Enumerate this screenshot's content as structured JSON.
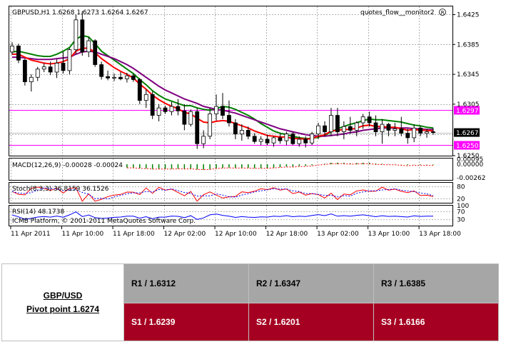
{
  "chart_data": {
    "type": "candlestick",
    "title": "GBPUSD,H1  1.6268 1.6273 1.6264 1.6267",
    "indicator_label": "quotes_flow__monitor2",
    "footer": "ICMB Platform, © 2001-2011 MetaQuotes Software Corp.",
    "y_ticks": [
      "1.6425",
      "1.6385",
      "1.6345",
      "1.6305",
      "1.6250"
    ],
    "ylim": [
      1.6236,
      1.6436
    ],
    "x_ticks": [
      "11 Apr 2011",
      "11 Apr 10:00",
      "11 Apr 18:00",
      "12 Apr 02:00",
      "12 Apr 10:00",
      "12 Apr 18:00",
      "13 Apr 02:00",
      "13 Apr 10:00",
      "13 Apr 18:00"
    ],
    "current_price": "1.6267",
    "level_lines": [
      {
        "value": 1.6297,
        "label": "1.6297",
        "color": "#ff00ff"
      },
      {
        "value": 1.625,
        "label": "1.6250",
        "color": "#ff00ff"
      }
    ],
    "candles": [
      [
        1.6375,
        1.6388,
        1.6371,
        1.6383
      ],
      [
        1.6383,
        1.6386,
        1.636,
        1.6364
      ],
      [
        1.6364,
        1.6366,
        1.633,
        1.6335
      ],
      [
        1.6335,
        1.6345,
        1.6322,
        1.6341
      ],
      [
        1.6341,
        1.6355,
        1.6336,
        1.6352
      ],
      [
        1.6352,
        1.636,
        1.6348,
        1.6355
      ],
      [
        1.6355,
        1.6362,
        1.6344,
        1.6348
      ],
      [
        1.6348,
        1.6365,
        1.634,
        1.636
      ],
      [
        1.636,
        1.6375,
        1.6346,
        1.635
      ],
      [
        1.635,
        1.638,
        1.6345,
        1.6378
      ],
      [
        1.6378,
        1.6425,
        1.6372,
        1.6418
      ],
      [
        1.6418,
        1.643,
        1.637,
        1.6375
      ],
      [
        1.6375,
        1.6395,
        1.6368,
        1.639
      ],
      [
        1.639,
        1.6392,
        1.6355,
        1.6358
      ],
      [
        1.6358,
        1.6362,
        1.6338,
        1.6342
      ],
      [
        1.6342,
        1.635,
        1.6337,
        1.634
      ],
      [
        1.634,
        1.6346,
        1.6336,
        1.6341
      ],
      [
        1.6341,
        1.6348,
        1.6337,
        1.6339
      ],
      [
        1.6339,
        1.6347,
        1.6334,
        1.6343
      ],
      [
        1.6343,
        1.6346,
        1.6335,
        1.6338
      ],
      [
        1.6338,
        1.634,
        1.6305,
        1.631
      ],
      [
        1.631,
        1.6325,
        1.63,
        1.6318
      ],
      [
        1.6318,
        1.6322,
        1.6285,
        1.629
      ],
      [
        1.629,
        1.6305,
        1.6282,
        1.63
      ],
      [
        1.63,
        1.6303,
        1.6292,
        1.6295
      ],
      [
        1.6295,
        1.6308,
        1.629,
        1.6302
      ],
      [
        1.6302,
        1.6312,
        1.629,
        1.6296
      ],
      [
        1.6296,
        1.6305,
        1.627,
        1.6278
      ],
      [
        1.6278,
        1.6298,
        1.6275,
        1.6295
      ],
      [
        1.6295,
        1.63,
        1.6245,
        1.6252
      ],
      [
        1.6252,
        1.627,
        1.6246,
        1.6262
      ],
      [
        1.6262,
        1.63,
        1.6258,
        1.6292
      ],
      [
        1.6292,
        1.6318,
        1.6283,
        1.6302
      ],
      [
        1.6302,
        1.632,
        1.6285,
        1.629
      ],
      [
        1.629,
        1.631,
        1.6275,
        1.628
      ],
      [
        1.628,
        1.6285,
        1.6258,
        1.6265
      ],
      [
        1.6265,
        1.6278,
        1.6256,
        1.627
      ],
      [
        1.627,
        1.6275,
        1.6258,
        1.6262
      ],
      [
        1.6262,
        1.6266,
        1.6252,
        1.6255
      ],
      [
        1.6255,
        1.6262,
        1.625,
        1.6258
      ],
      [
        1.6258,
        1.6264,
        1.625,
        1.6253
      ],
      [
        1.6253,
        1.6262,
        1.6248,
        1.626
      ],
      [
        1.626,
        1.6266,
        1.6252,
        1.6256
      ],
      [
        1.6256,
        1.6268,
        1.625,
        1.6265
      ],
      [
        1.6265,
        1.6268,
        1.625,
        1.6252
      ],
      [
        1.6252,
        1.6262,
        1.6248,
        1.6258
      ],
      [
        1.6258,
        1.6262,
        1.6247,
        1.6253
      ],
      [
        1.6253,
        1.6268,
        1.625,
        1.6265
      ],
      [
        1.6265,
        1.628,
        1.6258,
        1.6276
      ],
      [
        1.6276,
        1.6282,
        1.6262,
        1.6268
      ],
      [
        1.6268,
        1.63,
        1.6262,
        1.629
      ],
      [
        1.629,
        1.63,
        1.6262,
        1.6268
      ],
      [
        1.6268,
        1.6282,
        1.6258,
        1.6275
      ],
      [
        1.6275,
        1.6288,
        1.6265,
        1.627
      ],
      [
        1.627,
        1.6282,
        1.6262,
        1.628
      ],
      [
        1.628,
        1.6292,
        1.6272,
        1.6288
      ],
      [
        1.6288,
        1.6295,
        1.6275,
        1.628
      ],
      [
        1.628,
        1.629,
        1.6262,
        1.6268
      ],
      [
        1.6268,
        1.6285,
        1.6252,
        1.6278
      ],
      [
        1.6278,
        1.628,
        1.6262,
        1.627
      ],
      [
        1.627,
        1.628,
        1.6262,
        1.6272
      ],
      [
        1.6272,
        1.6288,
        1.6262,
        1.6266
      ],
      [
        1.6266,
        1.6272,
        1.6252,
        1.626
      ],
      [
        1.626,
        1.6278,
        1.6254,
        1.6273
      ],
      [
        1.6273,
        1.6276,
        1.6262,
        1.6266
      ],
      [
        1.6266,
        1.6272,
        1.626,
        1.6268
      ],
      [
        1.6268,
        1.6273,
        1.6264,
        1.6267
      ]
    ],
    "moving_averages": [
      {
        "color": "#008000",
        "values": [
          1.6375,
          1.6376,
          1.6374,
          1.6372,
          1.637,
          1.6369,
          1.6369,
          1.6372,
          1.6376,
          1.6381,
          1.6392,
          1.6397,
          1.6395,
          1.6386,
          1.6376,
          1.637,
          1.6364,
          1.6358,
          1.6352,
          1.6346,
          1.6338,
          1.6331,
          1.6323,
          1.6317,
          1.6312,
          1.6309,
          1.6306,
          1.6303,
          1.6303,
          1.63,
          1.6298,
          1.6297,
          1.6299,
          1.6302,
          1.6301,
          1.6298,
          1.6294,
          1.629,
          1.6285,
          1.6279,
          1.6274,
          1.6269,
          1.6266,
          1.6264,
          1.6262,
          1.626,
          1.6259,
          1.6259,
          1.6261,
          1.6263,
          1.6268,
          1.6272,
          1.6275,
          1.6278,
          1.628,
          1.6283,
          1.6285,
          1.6284,
          1.6284,
          1.6283,
          1.6282,
          1.6281,
          1.6279,
          1.6277,
          1.6276,
          1.6274,
          1.6273
        ]
      },
      {
        "color": "#800080",
        "values": [
          1.6368,
          1.6368,
          1.6367,
          1.6366,
          1.6365,
          1.6365,
          1.6365,
          1.6366,
          1.6367,
          1.6368,
          1.6372,
          1.6375,
          1.6376,
          1.6375,
          1.6372,
          1.6369,
          1.6366,
          1.6362,
          1.6358,
          1.6353,
          1.6347,
          1.6341,
          1.6335,
          1.6329,
          1.6324,
          1.632,
          1.6316,
          1.6312,
          1.6309,
          1.6306,
          1.6302,
          1.63,
          1.6298,
          1.6297,
          1.6295,
          1.6293,
          1.629,
          1.6287,
          1.6284,
          1.6281,
          1.6278,
          1.6275,
          1.6272,
          1.627,
          1.6268,
          1.6266,
          1.6264,
          1.6263,
          1.6262,
          1.6262,
          1.6263,
          1.6264,
          1.6265,
          1.6267,
          1.6268,
          1.627,
          1.6271,
          1.6272,
          1.6273,
          1.6273,
          1.6273,
          1.6273,
          1.6273,
          1.6272,
          1.6272,
          1.6271,
          1.6271
        ]
      },
      {
        "color": "#ff0000",
        "values": [
          1.6372,
          1.6372,
          1.6368,
          1.6364,
          1.6362,
          1.636,
          1.6359,
          1.636,
          1.6362,
          1.6366,
          1.6376,
          1.638,
          1.638,
          1.6374,
          1.6366,
          1.636,
          1.6354,
          1.6349,
          1.6345,
          1.634,
          1.6332,
          1.6325,
          1.6317,
          1.6311,
          1.6306,
          1.6302,
          1.6299,
          1.6294,
          1.6292,
          1.6286,
          1.6281,
          1.628,
          1.6282,
          1.6283,
          1.6282,
          1.6279,
          1.6276,
          1.6273,
          1.6269,
          1.6266,
          1.6263,
          1.6262,
          1.6261,
          1.6261,
          1.6259,
          1.6259,
          1.6258,
          1.6259,
          1.6262,
          1.6264,
          1.6269,
          1.627,
          1.6271,
          1.6271,
          1.6273,
          1.6276,
          1.6277,
          1.6275,
          1.6275,
          1.6274,
          1.6274,
          1.6272,
          1.627,
          1.6271,
          1.627,
          1.627,
          1.6269
        ]
      }
    ],
    "macd": {
      "label": "MACD(12,26,9) -0.00028 -0.00024",
      "ticks": [
        "0.00095",
        "0.00000",
        "-0.00262"
      ],
      "ylim": [
        -0.003,
        0.0011
      ]
    },
    "stoch": {
      "label": "Stoch(8,3,3) 36.8159 36.1526",
      "ticks": [
        "80",
        "20"
      ],
      "ylim": [
        0,
        100
      ]
    },
    "rsi": {
      "label": "RSI(14) 48.1738",
      "ticks": [
        "100",
        "70",
        "30"
      ],
      "ylim": [
        0,
        100
      ]
    }
  },
  "pivot_table": {
    "pair": "GBP/USD",
    "pivot": "Pivot point 1.6274",
    "r1": "R1 / 1.6312",
    "r2": "R2 / 1.6347",
    "r3": "R3 / 1.6385",
    "s1": "S1 / 1.6239",
    "s2": "S2 / 1.6201",
    "s3": "S3 / 1.6166"
  }
}
